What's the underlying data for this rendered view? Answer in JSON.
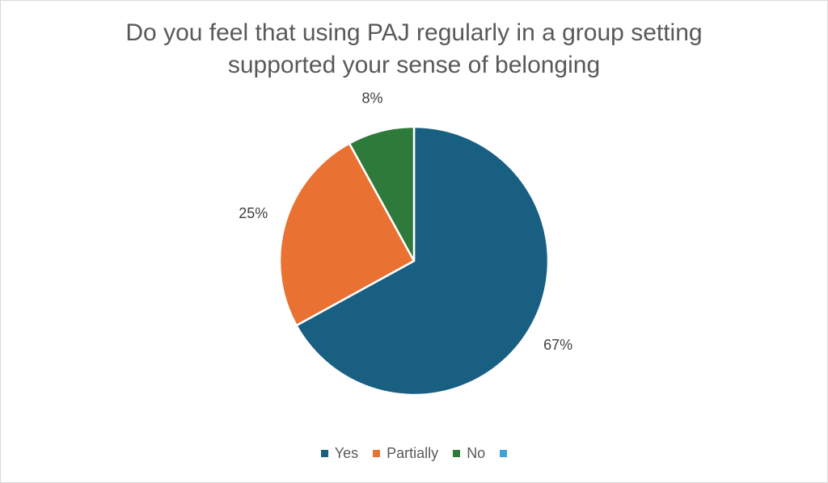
{
  "chart_data": {
    "type": "pie",
    "title_lines": [
      "Do you feel that using PAJ regularly in a group setting",
      "supported your sense of belonging"
    ],
    "slices": [
      {
        "name": "Yes",
        "value": 67,
        "label": "67%",
        "color": "#185f82"
      },
      {
        "name": "Partially",
        "value": 25,
        "label": "25%",
        "color": "#e97132"
      },
      {
        "name": "No",
        "value": 8,
        "label": "8%",
        "color": "#2e7a3a"
      }
    ],
    "legend": [
      {
        "label": "Yes",
        "color": "#185f82"
      },
      {
        "label": "Partially",
        "color": "#e97132"
      },
      {
        "label": "No",
        "color": "#2e7a3a"
      },
      {
        "label": "",
        "color": "#3ca3d6"
      }
    ],
    "legend_position": "bottom"
  }
}
